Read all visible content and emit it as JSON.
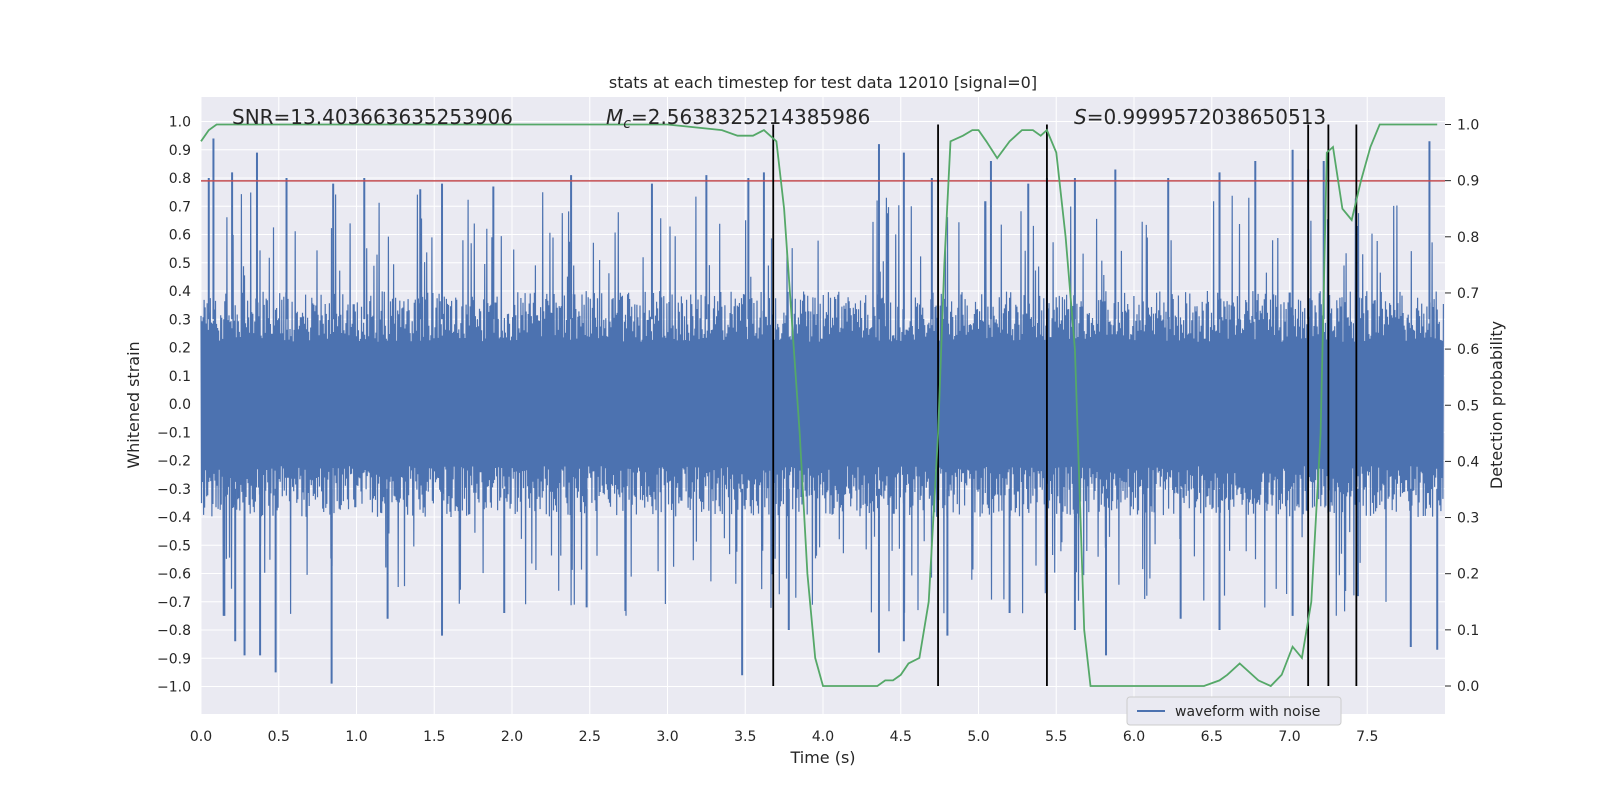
{
  "chart_data": {
    "type": "line",
    "title": "stats at each timestep for test data 12010 [signal=0]",
    "xlabel": "Time (s)",
    "ylabel": "Whitened strain",
    "y2label": "Detection probability",
    "xlim": [
      0.0,
      8.0
    ],
    "ylim": [
      -1.1,
      1.1
    ],
    "y2lim": [
      -0.05,
      1.05
    ],
    "xticks": [
      "0.0",
      "0.5",
      "1.0",
      "1.5",
      "2.0",
      "2.5",
      "3.0",
      "3.5",
      "4.0",
      "4.5",
      "5.0",
      "5.5",
      "6.0",
      "6.5",
      "7.0",
      "7.5"
    ],
    "yticks": [
      "1.0",
      "0.9",
      "0.8",
      "0.7",
      "0.6",
      "0.5",
      "0.4",
      "0.3",
      "0.2",
      "0.1",
      "0.0",
      "−0.1",
      "−0.2",
      "−0.3",
      "−0.4",
      "−0.5",
      "−0.6",
      "−0.7",
      "−0.8",
      "−0.9",
      "−1.0"
    ],
    "y2ticks": [
      "1.0",
      "0.9",
      "0.8",
      "0.7",
      "0.6",
      "0.5",
      "0.4",
      "0.3",
      "0.2",
      "0.1",
      "0.0"
    ],
    "grid": true,
    "legend": {
      "entries": [
        "waveform with noise"
      ],
      "position": "lower-right"
    },
    "annotations": {
      "snr": "SNR=13.403663635253906",
      "mc_symbol": "M",
      "mc_sub": "c",
      "mc_value": "=2.5638325214385986",
      "s_symbol": "S",
      "s_value": "=0.9999572038650513"
    },
    "threshold_line": {
      "y": 0.79,
      "axis": "left",
      "color": "#c44e52"
    },
    "vertical_lines_x": [
      3.68,
      4.74,
      5.44,
      7.12,
      7.25,
      7.43
    ],
    "series": [
      {
        "name": "waveform with noise",
        "axis": "left",
        "color": "#4c72b0",
        "description": "dense noise envelope",
        "envelope_peaks_upper": [
          [
            0.05,
            0.8
          ],
          [
            0.08,
            0.94
          ],
          [
            0.2,
            0.82
          ],
          [
            0.36,
            0.89
          ],
          [
            0.55,
            0.8
          ],
          [
            0.85,
            0.78
          ],
          [
            1.05,
            0.8
          ],
          [
            1.41,
            0.76
          ],
          [
            1.55,
            0.78
          ],
          [
            1.88,
            0.77
          ],
          [
            2.38,
            0.81
          ],
          [
            2.9,
            0.78
          ],
          [
            3.25,
            0.81
          ],
          [
            3.52,
            0.8
          ],
          [
            3.62,
            0.82
          ],
          [
            4.36,
            0.92
          ],
          [
            4.52,
            0.89
          ],
          [
            4.7,
            0.8
          ],
          [
            5.08,
            0.86
          ],
          [
            5.32,
            0.78
          ],
          [
            5.44,
            0.8
          ],
          [
            5.62,
            0.8
          ],
          [
            5.88,
            0.83
          ],
          [
            6.22,
            0.8
          ],
          [
            6.55,
            0.82
          ],
          [
            6.78,
            0.86
          ],
          [
            7.02,
            0.9
          ],
          [
            7.12,
            0.83
          ],
          [
            7.22,
            0.86
          ],
          [
            7.9,
            0.93
          ]
        ],
        "envelope_peaks_lower": [
          [
            0.15,
            -0.75
          ],
          [
            0.22,
            -0.84
          ],
          [
            0.28,
            -0.89
          ],
          [
            0.38,
            -0.89
          ],
          [
            0.48,
            -0.95
          ],
          [
            0.84,
            -0.99
          ],
          [
            1.2,
            -0.76
          ],
          [
            1.55,
            -0.82
          ],
          [
            1.95,
            -0.74
          ],
          [
            2.48,
            -0.72
          ],
          [
            3.48,
            -0.96
          ],
          [
            3.78,
            -0.8
          ],
          [
            4.36,
            -0.88
          ],
          [
            4.52,
            -0.84
          ],
          [
            4.8,
            -0.82
          ],
          [
            5.2,
            -0.74
          ],
          [
            5.62,
            -0.8
          ],
          [
            5.82,
            -0.89
          ],
          [
            6.3,
            -0.76
          ],
          [
            6.55,
            -0.8
          ],
          [
            7.02,
            -0.75
          ],
          [
            7.44,
            -0.68
          ],
          [
            7.78,
            -0.86
          ],
          [
            7.95,
            -0.87
          ]
        ],
        "envelope_typical_amplitude": 0.4
      },
      {
        "name": "detection probability",
        "axis": "right",
        "color": "#55a868",
        "x": [
          0.0,
          0.05,
          0.1,
          0.5,
          1.0,
          1.5,
          2.0,
          2.5,
          3.0,
          3.35,
          3.45,
          3.55,
          3.62,
          3.7,
          3.75,
          3.8,
          3.85,
          3.9,
          3.95,
          4.0,
          4.1,
          4.2,
          4.3,
          4.35,
          4.4,
          4.45,
          4.5,
          4.55,
          4.62,
          4.68,
          4.74,
          4.78,
          4.82,
          4.9,
          4.96,
          5.0,
          5.05,
          5.12,
          5.2,
          5.28,
          5.35,
          5.4,
          5.44,
          5.5,
          5.56,
          5.62,
          5.68,
          5.72,
          5.8,
          6.0,
          6.2,
          6.3,
          6.45,
          6.55,
          6.6,
          6.68,
          6.8,
          6.88,
          6.95,
          7.02,
          7.08,
          7.14,
          7.2,
          7.24,
          7.28,
          7.34,
          7.4,
          7.46,
          7.52,
          7.58,
          7.7,
          7.8,
          7.95
        ],
        "values": [
          0.97,
          0.99,
          1.0,
          1.0,
          1.0,
          1.0,
          1.0,
          1.0,
          1.0,
          0.99,
          0.98,
          0.98,
          0.99,
          0.97,
          0.85,
          0.65,
          0.45,
          0.2,
          0.05,
          0.0,
          0.0,
          0.0,
          0.0,
          0.0,
          0.01,
          0.01,
          0.02,
          0.04,
          0.05,
          0.15,
          0.45,
          0.75,
          0.97,
          0.98,
          0.99,
          0.99,
          0.97,
          0.94,
          0.97,
          0.99,
          0.99,
          0.98,
          0.99,
          0.95,
          0.8,
          0.6,
          0.1,
          0.0,
          0.0,
          0.0,
          0.0,
          0.0,
          0.0,
          0.01,
          0.02,
          0.04,
          0.01,
          0.0,
          0.02,
          0.07,
          0.05,
          0.15,
          0.45,
          0.95,
          0.96,
          0.85,
          0.83,
          0.9,
          0.96,
          1.0,
          1.0,
          1.0,
          1.0
        ]
      }
    ]
  }
}
